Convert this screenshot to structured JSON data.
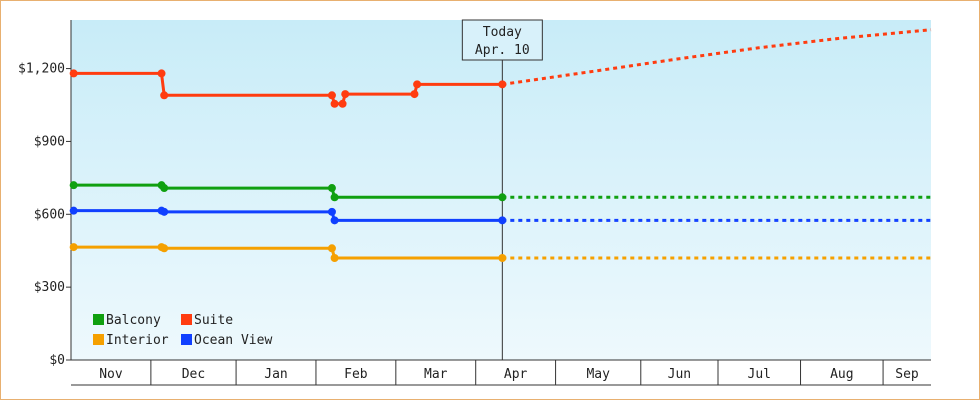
{
  "chart_data": {
    "type": "line",
    "title": "",
    "xlabel": "",
    "ylabel": "",
    "ylim": [
      0,
      1400
    ],
    "y_ticks": [
      {
        "value": 0,
        "label": "$0"
      },
      {
        "value": 300,
        "label": "$300"
      },
      {
        "value": 600,
        "label": "$600"
      },
      {
        "value": 900,
        "label": "$900"
      },
      {
        "value": 1200,
        "label": "$1,200"
      }
    ],
    "x_range": [
      "2023-10-31",
      "2024-09-18"
    ],
    "x_months": [
      {
        "label": "Nov",
        "start": "2023-10-31"
      },
      {
        "label": "Dec",
        "start": "2023-11-30"
      },
      {
        "label": "Jan",
        "start": "2024-01-01"
      },
      {
        "label": "Feb",
        "start": "2024-01-31"
      },
      {
        "label": "Mar",
        "start": "2024-03-01"
      },
      {
        "label": "Apr",
        "start": "2024-03-31"
      },
      {
        "label": "May",
        "start": "2024-04-30"
      },
      {
        "label": "Jun",
        "start": "2024-06-01"
      },
      {
        "label": "Jul",
        "start": "2024-06-30"
      },
      {
        "label": "Aug",
        "start": "2024-07-31"
      },
      {
        "label": "Sep",
        "start": "2024-08-31"
      }
    ],
    "today": {
      "label_line1": "Today",
      "label_line2": "Apr. 10",
      "date": "2024-04-10"
    },
    "grid": false,
    "legend_position": "bottom-left",
    "series": [
      {
        "name": "Suite",
        "color": "#ff3c10",
        "style": "step",
        "points": [
          {
            "x": "2023-11-01",
            "y": 1180
          },
          {
            "x": "2023-12-04",
            "y": 1180
          },
          {
            "x": "2023-12-05",
            "y": 1090
          },
          {
            "x": "2024-02-06",
            "y": 1090
          },
          {
            "x": "2024-02-07",
            "y": 1055
          },
          {
            "x": "2024-02-10",
            "y": 1055
          },
          {
            "x": "2024-02-11",
            "y": 1095
          },
          {
            "x": "2024-03-08",
            "y": 1095
          },
          {
            "x": "2024-03-09",
            "y": 1135
          },
          {
            "x": "2024-04-10",
            "y": 1135
          }
        ],
        "forecast": [
          {
            "x": "2024-04-10",
            "y": 1135
          },
          {
            "x": "2024-05-15",
            "y": 1190
          },
          {
            "x": "2024-06-15",
            "y": 1240
          },
          {
            "x": "2024-07-15",
            "y": 1285
          },
          {
            "x": "2024-08-15",
            "y": 1325
          },
          {
            "x": "2024-09-18",
            "y": 1360
          }
        ]
      },
      {
        "name": "Balcony",
        "color": "#10a010",
        "style": "step",
        "points": [
          {
            "x": "2023-11-01",
            "y": 720
          },
          {
            "x": "2023-12-04",
            "y": 720
          },
          {
            "x": "2023-12-05",
            "y": 708
          },
          {
            "x": "2024-02-06",
            "y": 708
          },
          {
            "x": "2024-02-07",
            "y": 670
          },
          {
            "x": "2024-04-10",
            "y": 670
          }
        ],
        "forecast": [
          {
            "x": "2024-04-10",
            "y": 670
          },
          {
            "x": "2024-09-18",
            "y": 670
          }
        ]
      },
      {
        "name": "Ocean View",
        "color": "#1040ff",
        "style": "step",
        "points": [
          {
            "x": "2023-11-01",
            "y": 615
          },
          {
            "x": "2023-12-04",
            "y": 615
          },
          {
            "x": "2023-12-05",
            "y": 610
          },
          {
            "x": "2024-02-06",
            "y": 610
          },
          {
            "x": "2024-02-07",
            "y": 575
          },
          {
            "x": "2024-04-10",
            "y": 575
          }
        ],
        "forecast": [
          {
            "x": "2024-04-10",
            "y": 575
          },
          {
            "x": "2024-09-18",
            "y": 575
          }
        ]
      },
      {
        "name": "Interior",
        "color": "#f5a000",
        "style": "step",
        "points": [
          {
            "x": "2023-11-01",
            "y": 465
          },
          {
            "x": "2023-12-04",
            "y": 465
          },
          {
            "x": "2023-12-05",
            "y": 460
          },
          {
            "x": "2024-02-06",
            "y": 460
          },
          {
            "x": "2024-02-07",
            "y": 420
          },
          {
            "x": "2024-04-10",
            "y": 420
          }
        ],
        "forecast": [
          {
            "x": "2024-04-10",
            "y": 420
          },
          {
            "x": "2024-09-18",
            "y": 420
          }
        ]
      }
    ],
    "legend": [
      {
        "name": "Balcony",
        "color": "#10a010"
      },
      {
        "name": "Suite",
        "color": "#ff3c10"
      },
      {
        "name": "Interior",
        "color": "#f5a000"
      },
      {
        "name": "Ocean View",
        "color": "#1040ff"
      }
    ]
  }
}
